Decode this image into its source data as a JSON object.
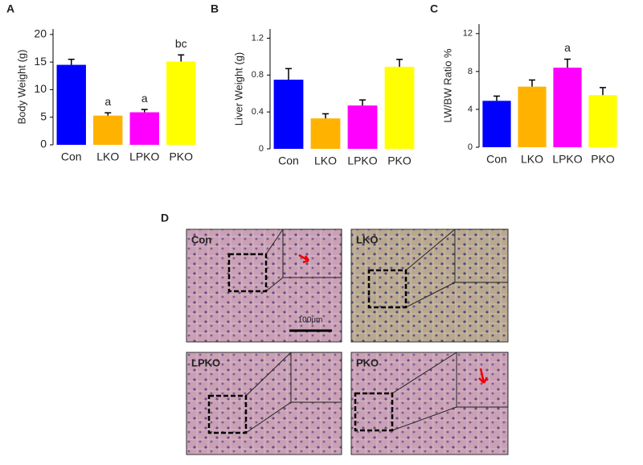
{
  "chart_data": [
    {
      "type": "bar",
      "panel": "A",
      "ylabel": "Body Weight (g)",
      "categories": [
        "Con",
        "LKO",
        "LPKO",
        "PKO"
      ],
      "values": [
        14.5,
        5.3,
        5.9,
        15.1
      ],
      "errors": [
        1.0,
        0.5,
        0.5,
        1.2
      ],
      "annotations": [
        null,
        "a",
        "a",
        "bc"
      ],
      "colors": [
        "#0000ff",
        "#ffb300",
        "#ff00ff",
        "#ffff00"
      ],
      "ylim": [
        0,
        21
      ],
      "yticks": [
        0,
        5,
        10,
        15,
        20
      ]
    },
    {
      "type": "bar",
      "panel": "B",
      "ylabel": "Liver Weight (g)",
      "categories": [
        "Con",
        "LKO",
        "LPKO",
        "PKO"
      ],
      "values": [
        0.75,
        0.33,
        0.47,
        0.89
      ],
      "errors": [
        0.12,
        0.05,
        0.06,
        0.08
      ],
      "colors": [
        "#0000ff",
        "#ffb300",
        "#ff00ff",
        "#ffff00"
      ],
      "ylim": [
        0,
        1.3
      ],
      "yticks": [
        0,
        0.4,
        0.8,
        1.2
      ]
    },
    {
      "type": "bar",
      "panel": "C",
      "ylabel": "LW/BW Ratio %",
      "categories": [
        "Con",
        "LKO",
        "LPKO",
        "PKO"
      ],
      "values": [
        4.9,
        6.4,
        8.4,
        5.5
      ],
      "errors": [
        0.5,
        0.7,
        0.9,
        0.8
      ],
      "annotations": [
        null,
        null,
        "a",
        null
      ],
      "colors": [
        "#0000ff",
        "#ffb300",
        "#ff00ff",
        "#ffff00"
      ],
      "ylim": [
        0,
        13
      ],
      "yticks": [
        0,
        4,
        8,
        12
      ]
    }
  ],
  "micrographs": {
    "panel": "D",
    "labels": [
      "Con",
      "LKO",
      "LPKO",
      "PKO"
    ],
    "scale_bar": "100μm"
  }
}
